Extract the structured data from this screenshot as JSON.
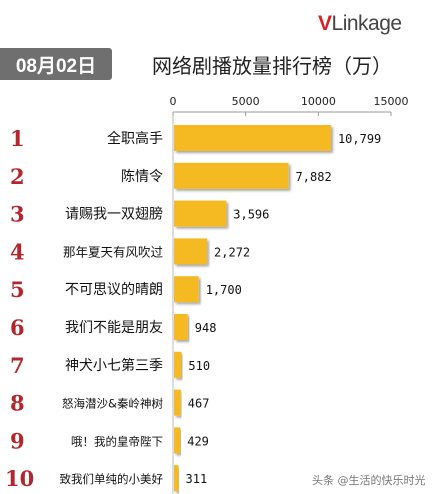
{
  "logo": {
    "brand_v": "V",
    "brand_rest": "Linkage"
  },
  "date_badge": "08月02日",
  "footer_text": "头条 @生活的快乐时光",
  "chart_data": {
    "type": "bar",
    "orientation": "horizontal",
    "title": "网络剧播放量排行榜（万）",
    "xlim": [
      0,
      15000
    ],
    "x_ticks": [
      0,
      5000,
      10000,
      15000
    ],
    "grid": false,
    "legend": "none",
    "bar_color": "#f5b922",
    "rank_color": "#b3262b",
    "series": [
      {
        "categories": [
          "全职高手",
          "陈情令",
          "请赐我一双翅膀",
          "那年夏天有风吹过",
          "不可思议的晴朗",
          "我们不能是朋友",
          "神犬小七第三季",
          "怒海潜沙&秦岭神树",
          "哦！我的皇帝陛下",
          "致我们单纯的小美好"
        ],
        "ranks": [
          "1",
          "2",
          "3",
          "4",
          "5",
          "6",
          "7",
          "8",
          "9",
          "10"
        ],
        "values": [
          10799,
          7882,
          3596,
          2272,
          1700,
          948,
          510,
          467,
          429,
          311
        ],
        "value_labels": [
          "10,799",
          "7,882",
          "3,596",
          "2,272",
          "1,700",
          "948",
          "510",
          "467",
          "429",
          "311"
        ]
      }
    ]
  }
}
